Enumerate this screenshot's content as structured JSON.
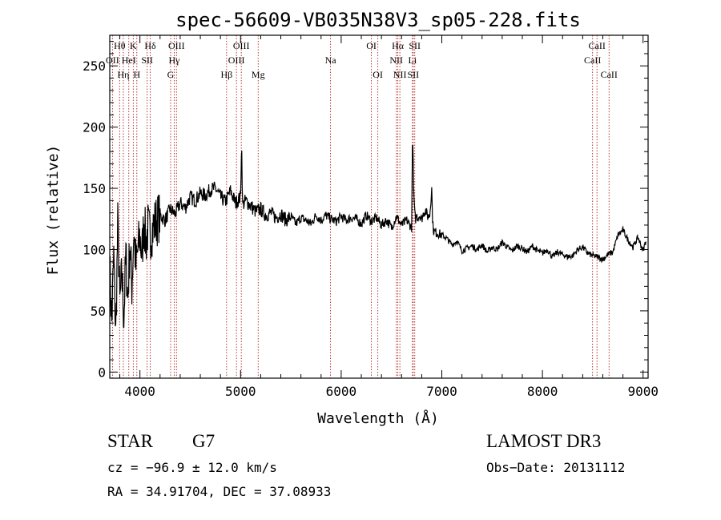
{
  "chart_data": {
    "type": "line",
    "title": "spec-56609-VB035N38V3_sp05-228.fits",
    "xlabel": "Wavelength (Å)",
    "ylabel": "Flux (relative)",
    "xlim": [
      3700,
      9050
    ],
    "ylim": [
      -5,
      275
    ],
    "xticks": [
      4000,
      5000,
      6000,
      7000,
      8000,
      9000
    ],
    "xtick_labels": [
      "4000",
      "5000",
      "6000",
      "7000",
      "8000",
      "9000"
    ],
    "yticks": [
      0,
      50,
      100,
      150,
      200,
      250
    ],
    "ytick_labels": [
      "0",
      "50",
      "100",
      "150",
      "200",
      "250"
    ],
    "series": [
      {
        "name": "flux",
        "x": [
          3700,
          3720,
          3740,
          3760,
          3780,
          3800,
          3820,
          3840,
          3860,
          3880,
          3900,
          3920,
          3940,
          3960,
          3980,
          4000,
          4020,
          4040,
          4060,
          4080,
          4100,
          4150,
          4200,
          4250,
          4300,
          4350,
          4400,
          4450,
          4500,
          4550,
          4600,
          4650,
          4700,
          4750,
          4800,
          4850,
          4900,
          4950,
          5000,
          5010,
          5020,
          5050,
          5100,
          5150,
          5200,
          5250,
          5300,
          5350,
          5400,
          5450,
          5500,
          5550,
          5600,
          5650,
          5700,
          5750,
          5800,
          5850,
          5900,
          5950,
          6000,
          6050,
          6100,
          6150,
          6200,
          6250,
          6300,
          6350,
          6400,
          6450,
          6500,
          6550,
          6600,
          6650,
          6700,
          6710,
          6720,
          6730,
          6740,
          6750,
          6760,
          6780,
          6800,
          6820,
          6840,
          6860,
          6880,
          6900,
          6910,
          6920,
          6940,
          7000,
          7050,
          7100,
          7150,
          7200,
          7250,
          7300,
          7350,
          7400,
          7450,
          7500,
          7550,
          7600,
          7650,
          7700,
          7750,
          7800,
          7850,
          7900,
          7950,
          8000,
          8050,
          8100,
          8150,
          8200,
          8250,
          8300,
          8350,
          8400,
          8450,
          8500,
          8550,
          8600,
          8650,
          8700,
          8750,
          8800,
          8850,
          8900,
          8950,
          9000,
          9030
        ],
        "y": [
          85,
          40,
          95,
          30,
          120,
          55,
          80,
          45,
          95,
          60,
          105,
          70,
          115,
          85,
          100,
          110,
          95,
          125,
          105,
          118,
          112,
          122,
          128,
          124,
          133,
          129,
          138,
          134,
          143,
          140,
          146,
          144,
          149,
          150,
          143,
          139,
          148,
          138,
          143,
          190,
          136,
          140,
          136,
          131,
          133,
          128,
          130,
          126,
          129,
          124,
          127,
          121,
          126,
          124,
          121,
          128,
          124,
          128,
          125,
          123,
          127,
          124,
          126,
          125,
          121,
          128,
          123,
          126,
          120,
          124,
          118,
          127,
          120,
          124,
          118,
          198,
          150,
          130,
          125,
          128,
          126,
          128,
          125,
          130,
          132,
          127,
          128,
          150,
          120,
          115,
          114,
          112,
          109,
          104,
          107,
          99,
          101,
          103,
          100,
          104,
          98,
          102,
          100,
          106,
          102,
          99,
          103,
          101,
          98,
          103,
          99,
          97,
          100,
          94,
          98,
          96,
          94,
          95,
          100,
          102,
          97,
          95,
          94,
          92,
          96,
          98,
          112,
          116,
          108,
          102,
          110,
          99,
          108
        ]
      }
    ],
    "line_annotations": [
      {
        "label": "Hθ",
        "x": 3798,
        "row": 1
      },
      {
        "label": "OII",
        "x": 3727,
        "row": 2
      },
      {
        "label": "Hη",
        "x": 3835,
        "row": 3
      },
      {
        "label": "HeI",
        "x": 3889,
        "row": 2
      },
      {
        "label": "K",
        "x": 3934,
        "row": 1
      },
      {
        "label": "H",
        "x": 3969,
        "row": 3
      },
      {
        "label": "SII",
        "x": 4072,
        "row": 2
      },
      {
        "label": "Hδ",
        "x": 4102,
        "row": 1
      },
      {
        "label": "Hγ",
        "x": 4341,
        "row": 2
      },
      {
        "label": "G",
        "x": 4305,
        "row": 3
      },
      {
        "label": "OIII",
        "x": 4363,
        "row": 1
      },
      {
        "label": "Hβ",
        "x": 4861,
        "row": 3
      },
      {
        "label": "OIII",
        "x": 4959,
        "row": 2
      },
      {
        "label": "OIII",
        "x": 5007,
        "row": 1
      },
      {
        "label": "Mg",
        "x": 5175,
        "row": 3
      },
      {
        "label": "Na",
        "x": 5894,
        "row": 2
      },
      {
        "label": "OI",
        "x": 6300,
        "row": 1
      },
      {
        "label": "OI",
        "x": 6364,
        "row": 3
      },
      {
        "label": "NII",
        "x": 6548,
        "row": 2
      },
      {
        "label": "Hα",
        "x": 6563,
        "row": 1
      },
      {
        "label": "NII",
        "x": 6583,
        "row": 3
      },
      {
        "label": "Li",
        "x": 6708,
        "row": 2
      },
      {
        "label": "SII",
        "x": 6716,
        "row": 3
      },
      {
        "label": "SII",
        "x": 6731,
        "row": 1
      },
      {
        "label": "CaII",
        "x": 8498,
        "row": 2
      },
      {
        "label": "CaII",
        "x": 8542,
        "row": 1
      },
      {
        "label": "CaII",
        "x": 8662,
        "row": 3
      }
    ]
  },
  "info": {
    "object_class": "STAR",
    "subclass": "G7",
    "survey": "LAMOST DR3",
    "redshift": "cz = −96.9 ± 12.0 km/s",
    "obs_date": "Obs−Date: 20131112",
    "coords": "RA =  34.91704, DEC =  37.08933"
  }
}
